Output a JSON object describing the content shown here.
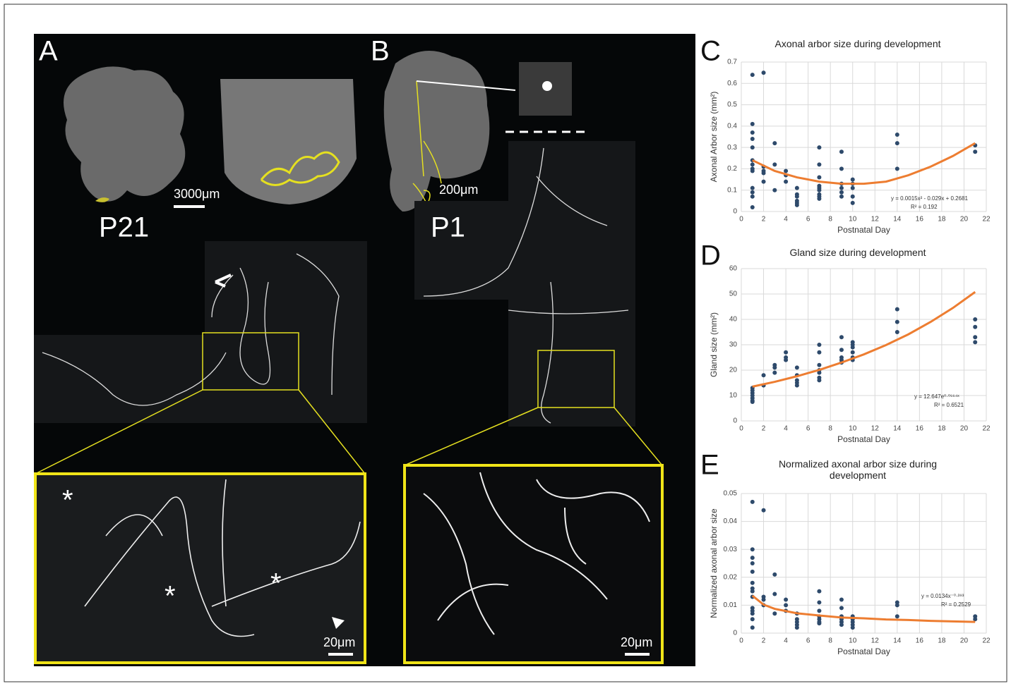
{
  "figure": {
    "panel_labels": [
      "A",
      "B",
      "C",
      "D",
      "E"
    ],
    "stage_labels": [
      "P21",
      "P1"
    ],
    "scale_bars": [
      "3000μm",
      "200μm",
      "20μm",
      "20μm"
    ],
    "markers": [
      "*",
      "*",
      "*"
    ]
  },
  "chart_data": [
    {
      "type": "scatter",
      "title": "Axonal arbor size during development",
      "xlabel": "Postnatal Day",
      "ylabel": "Axonal Arbor size (mm²)",
      "xlim": [
        0,
        22
      ],
      "xticks": [
        0,
        2,
        4,
        6,
        8,
        10,
        12,
        14,
        16,
        18,
        20,
        22
      ],
      "ylim": [
        0,
        0.7
      ],
      "yticks": [
        0,
        0.1,
        0.2,
        0.3,
        0.4,
        0.5,
        0.6,
        0.7
      ],
      "grid": true,
      "series": [
        {
          "color": "#2e4a6b",
          "x": [
            1,
            1,
            1,
            1,
            1,
            1,
            1,
            1,
            1,
            1,
            1,
            1,
            1,
            2,
            2,
            2,
            2,
            2,
            3,
            3,
            3,
            4,
            4,
            4,
            5,
            5,
            5,
            5,
            5,
            5,
            7,
            7,
            7,
            7,
            7,
            7,
            7,
            7,
            7,
            9,
            9,
            9,
            9,
            9,
            9,
            10,
            10,
            10,
            10,
            10,
            14,
            14,
            14,
            21,
            21
          ],
          "values": [
            0.64,
            0.41,
            0.37,
            0.34,
            0.3,
            0.24,
            0.22,
            0.2,
            0.19,
            0.11,
            0.09,
            0.07,
            0.02,
            0.65,
            0.21,
            0.19,
            0.18,
            0.14,
            0.32,
            0.22,
            0.1,
            0.19,
            0.17,
            0.14,
            0.11,
            0.08,
            0.07,
            0.05,
            0.04,
            0.03,
            0.3,
            0.22,
            0.16,
            0.12,
            0.11,
            0.1,
            0.08,
            0.07,
            0.06,
            0.28,
            0.2,
            0.13,
            0.11,
            0.09,
            0.07,
            0.15,
            0.13,
            0.11,
            0.07,
            0.04,
            0.36,
            0.32,
            0.2,
            0.31,
            0.28
          ]
        }
      ],
      "trendline": {
        "color": "#ed7d31",
        "x": [
          1,
          3,
          5,
          7,
          9,
          11,
          13,
          15,
          17,
          19,
          21
        ],
        "values": [
          0.24,
          0.19,
          0.16,
          0.14,
          0.13,
          0.13,
          0.14,
          0.17,
          0.21,
          0.26,
          0.32
        ],
        "equation": "y = 0.0015x² - 0.029x + 0.2681",
        "r_squared": "R² = 0.192"
      }
    },
    {
      "type": "scatter",
      "title": "Gland size during development",
      "xlabel": "Postnatal Day",
      "ylabel": "Gland size (mm²)",
      "xlim": [
        0,
        22
      ],
      "xticks": [
        0,
        2,
        4,
        6,
        8,
        10,
        12,
        14,
        16,
        18,
        20,
        22
      ],
      "ylim": [
        0,
        60
      ],
      "yticks": [
        0,
        10,
        20,
        30,
        40,
        50,
        60
      ],
      "grid": true,
      "series": [
        {
          "color": "#2e4a6b",
          "x": [
            1,
            1,
            1,
            1,
            1,
            1,
            1,
            2,
            2,
            3,
            3,
            3,
            4,
            4,
            4,
            5,
            5,
            5,
            5,
            5,
            7,
            7,
            7,
            7,
            7,
            7,
            7,
            9,
            9,
            9,
            9,
            9,
            10,
            10,
            10,
            10,
            10,
            10,
            14,
            14,
            14,
            21,
            21,
            21,
            21
          ],
          "values": [
            13,
            12,
            11,
            10,
            9,
            8,
            7.5,
            18,
            14,
            22,
            21,
            19,
            27,
            25,
            24,
            21,
            18,
            16,
            15,
            14,
            30,
            27,
            22,
            20,
            19,
            17,
            16,
            33,
            28,
            25,
            24,
            23,
            31,
            30,
            29,
            27,
            25,
            24,
            44,
            39,
            35,
            40,
            37,
            33,
            31
          ]
        }
      ],
      "trendline": {
        "color": "#ed7d31",
        "x": [
          1,
          3,
          5,
          7,
          9,
          11,
          13,
          15,
          17,
          19,
          21
        ],
        "values": [
          13.5,
          15.4,
          17.6,
          20.1,
          23.0,
          26.2,
          29.9,
          34.1,
          39.0,
          44.5,
          50.8
        ],
        "equation": "y = 12.647e⁰·⁰⁶⁶⁴ˣ",
        "r_squared": "R² = 0.6521"
      }
    },
    {
      "type": "scatter",
      "title": "Normalized axonal arbor size during development",
      "xlabel": "Postnatal Day",
      "ylabel": "Normalized axonal arbor size",
      "xlim": [
        0,
        22
      ],
      "xticks": [
        0,
        2,
        4,
        6,
        8,
        10,
        12,
        14,
        16,
        18,
        20,
        22
      ],
      "ylim": [
        0,
        0.05
      ],
      "yticks": [
        0,
        0.01,
        0.02,
        0.03,
        0.04,
        0.05
      ],
      "grid": true,
      "series": [
        {
          "color": "#2e4a6b",
          "x": [
            1,
            1,
            1,
            1,
            1,
            1,
            1,
            1,
            1,
            1,
            1,
            1,
            1,
            1,
            2,
            2,
            2,
            2,
            3,
            3,
            3,
            4,
            4,
            4,
            5,
            5,
            5,
            5,
            5,
            7,
            7,
            7,
            7,
            7,
            7,
            7,
            9,
            9,
            9,
            9,
            9,
            9,
            10,
            10,
            10,
            10,
            10,
            14,
            14,
            14,
            21,
            21
          ],
          "values": [
            0.047,
            0.03,
            0.027,
            0.025,
            0.022,
            0.018,
            0.016,
            0.015,
            0.013,
            0.009,
            0.008,
            0.007,
            0.005,
            0.002,
            0.044,
            0.013,
            0.012,
            0.01,
            0.021,
            0.014,
            0.007,
            0.012,
            0.01,
            0.008,
            0.007,
            0.005,
            0.004,
            0.003,
            0.002,
            0.015,
            0.011,
            0.008,
            0.006,
            0.005,
            0.004,
            0.0035,
            0.012,
            0.009,
            0.006,
            0.005,
            0.004,
            0.003,
            0.006,
            0.005,
            0.004,
            0.003,
            0.002,
            0.011,
            0.01,
            0.006,
            0.006,
            0.005
          ]
        }
      ],
      "trendline": {
        "color": "#ed7d31",
        "x": [
          1,
          2,
          3,
          5,
          7,
          9,
          11,
          13,
          15,
          17,
          19,
          21
        ],
        "values": [
          0.0134,
          0.0102,
          0.0087,
          0.0071,
          0.0063,
          0.0056,
          0.0053,
          0.0049,
          0.0047,
          0.0044,
          0.0042,
          0.004
        ],
        "equation": "y = 0.0134x⁻⁰·³⁹³",
        "r_squared": "R² = 0.2529"
      }
    }
  ]
}
